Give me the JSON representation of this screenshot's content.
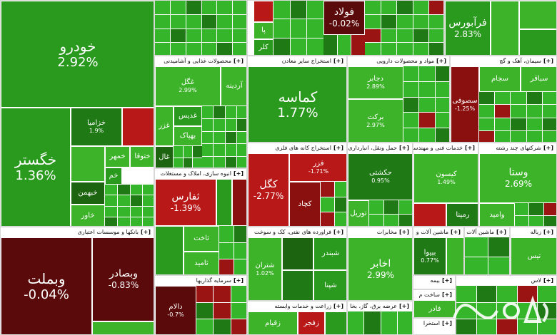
{
  "sectors": {
    "auto": {
      "title": "",
      "tiles": {
        "khodro": {
          "name": "خودرو",
          "pct": "2.92%"
        },
        "khegostar": {
          "name": "خگستر",
          "pct": "1.36%"
        },
        "khazamia": {
          "name": "خزامیا",
          "pct": "1.9%"
        },
        "khemehr": {
          "name": "خمهر"
        },
        "khotog": {
          "name": "ختوقا"
        },
        "khebahman": {
          "name": "خبهمن"
        },
        "khavar": {
          "name": "خاور"
        },
        "khem": {
          "name": "خم"
        }
      }
    },
    "food": {
      "title": "محصولات غذایی و آشامیدنی",
      "tiles": {
        "ghegol": {
          "name": "غگل",
          "pct": "2.99%"
        },
        "ardineh": {
          "name": "آردینه"
        },
        "ghadis": {
          "name": "غدیس"
        },
        "ghezar": {
          "name": "غزر"
        },
        "behpak": {
          "name": "بهپاک"
        },
        "ghal": {
          "name": "غال"
        }
      }
    },
    "mining": {
      "title": "استخراج سایر معادن",
      "tiles": {
        "kemaseh": {
          "name": "کماسه",
          "pct": "1.77%"
        }
      }
    },
    "pharma": {
      "title": "مواد و محصولات دارویی",
      "tiles": {
        "daljaros": {
          "name": "دجابر",
          "pct": "2.89%"
        },
        "barkat": {
          "name": "برکت",
          "pct": "2.97%"
        }
      }
    },
    "cement": {
      "title": "سیمان، آهک و گچ",
      "tiles": {
        "sesofi": {
          "name": "سصوفی",
          "pct": "-1.25%"
        },
        "sajam": {
          "name": "سجام"
        },
        "sabaqer": {
          "name": "سباقر"
        }
      }
    },
    "topright": {
      "tiles": {
        "foolad": {
          "name": "فولاد",
          "pct": "-0.02%"
        },
        "faravars": {
          "name": "فرآبورس",
          "pct": "2.83%"
        },
        "pa": {
          "name": "پا"
        },
        "kalar": {
          "name": "کلر"
        }
      }
    },
    "metal_ore": {
      "title": "استخراج کانه های فلزی",
      "tiles": {
        "kegol": {
          "name": "کگل",
          "pct": "-2.77%"
        },
        "kechad": {
          "name": "کچاد"
        },
        "fezar": {
          "name": "فزر",
          "pct": "-1.71%"
        }
      }
    },
    "transport": {
      "title": "حمل ونقل، انبارداری",
      "tiles": {
        "hakeshti": {
          "name": "حکشتی",
          "pct": "0.95%"
        },
        "toril": {
          "name": "توریل"
        }
      }
    },
    "tech": {
      "title": "خدمات فنی و مهندسی",
      "tiles": {
        "kisun": {
          "name": "کیسون",
          "pct": "1.49%"
        },
        "remapna": {
          "name": "رمپنا"
        }
      }
    },
    "multi": {
      "title": "شرکتهای چند رشته",
      "tiles": {
        "vastapa": {
          "name": "وستا",
          "pct": "2.69%"
        },
        "vaamid": {
          "name": "وامید"
        }
      }
    },
    "banks": {
      "title": "بانکها و موسسات اعتباری",
      "tiles": {
        "vabmelat": {
          "name": "وبملت",
          "pct": "-0.04%"
        },
        "vabsader": {
          "name": "وبصادر",
          "pct": "-0.83%"
        }
      }
    },
    "realestate": {
      "title": "انبوه سازی، املاک و مستغلات",
      "tiles": {
        "sefars": {
          "name": "ثفارس",
          "pct": "-1.39%"
        },
        "sakhat": {
          "name": "ثاخت"
        },
        "samid": {
          "name": "ثامید"
        }
      }
    },
    "oilprod": {
      "title": "فراورده های نفتی، کک و سوخت",
      "tiles": {
        "shebandar": {
          "name": "شبندر"
        },
        "shepna": {
          "name": "شپنا"
        },
        "shetran": {
          "name": "شتران",
          "pct": "1.02%"
        }
      }
    },
    "telecom": {
      "title": "مخابرات",
      "tiles": {
        "akhaber": {
          "name": "اخابر",
          "pct": "2.99%"
        }
      }
    },
    "machines": {
      "title": "ماشین آلات و",
      "tiles": {
        "babanir": {
          "name": "بپیوا",
          "pct": "0.77%"
        }
      }
    },
    "machines2": {
      "title": "ماشین آلات"
    },
    "other": {
      "title": "زراعت و خدمات وابسته",
      "tiles": {
        "zaghiam": {
          "name": "زقیام"
        },
        "zajahad": {
          "name": "زفجر"
        }
      }
    },
    "invest": {
      "title": "سرمایه گذاریها",
      "tiles": {
        "dalam": {
          "name": "دالام",
          "pct": "-0.7%"
        }
      }
    },
    "utility": {
      "title": "عرضه برق، گاز، بخا"
    },
    "insurance": {
      "title": "بیمه"
    },
    "build": {
      "title": "ساخت م"
    },
    "exp": {
      "title": "استخرا"
    },
    "zabaleh": {
      "title": "زباله"
    },
    "labs": {
      "title": "لاس"
    },
    "tes": {
      "title": "تیس"
    },
    "fanaf": {
      "title": "فادر"
    }
  },
  "plus_symbol": "[+]",
  "watermark": {
    "icon": "brand-logo-icon"
  }
}
